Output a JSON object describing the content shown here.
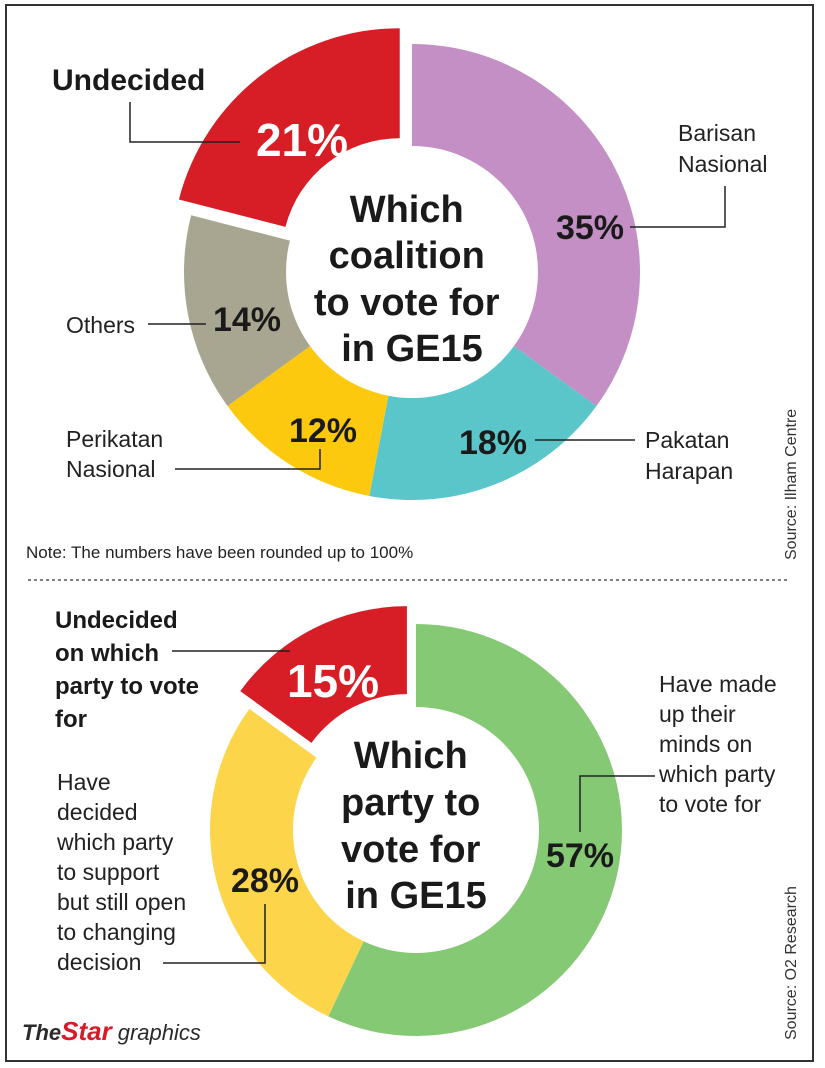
{
  "chart_data": [
    {
      "type": "pie",
      "title": [
        "Which",
        "coalition",
        "to vote for",
        "in GE15"
      ],
      "slices": [
        {
          "label": [
            "Barisan",
            "Nasional"
          ],
          "value": 35,
          "display": "35%",
          "color": "#c48fc4"
        },
        {
          "label": [
            "Pakatan",
            "Harapan"
          ],
          "value": 18,
          "display": "18%",
          "color": "#5bc6c9"
        },
        {
          "label": [
            "Perikatan",
            "Nasional"
          ],
          "value": 12,
          "display": "12%",
          "color": "#fdc90f"
        },
        {
          "label": [
            "Others"
          ],
          "value": 14,
          "display": "14%",
          "color": "#a8a591"
        },
        {
          "label": [
            "Undecided"
          ],
          "value": 21,
          "display": "21%",
          "color": "#d71d26",
          "exploded": true
        }
      ],
      "note": "Note: The numbers have been rounded up to 100%",
      "source": "Source: Ilham Centre"
    },
    {
      "type": "pie",
      "title": [
        "Which",
        "party to",
        "vote for",
        "in GE15"
      ],
      "slices": [
        {
          "label": [
            "Have made",
            "up their",
            "minds on",
            "which party",
            "to vote for"
          ],
          "value": 57,
          "display": "57%",
          "color": "#86c974"
        },
        {
          "label": [
            "Have",
            "decided",
            "which party",
            "to support",
            "but still open",
            "to changing",
            "decision"
          ],
          "value": 28,
          "display": "28%",
          "color": "#fdd54a"
        },
        {
          "label": [
            "Undecided",
            "on which",
            "party to vote",
            "for"
          ],
          "value": 15,
          "display": "15%",
          "color": "#d71d26",
          "exploded": true
        }
      ],
      "source": "Source: O2 Research"
    }
  ],
  "branding": {
    "the": "The",
    "star": "Star",
    "graphics": "graphics"
  }
}
